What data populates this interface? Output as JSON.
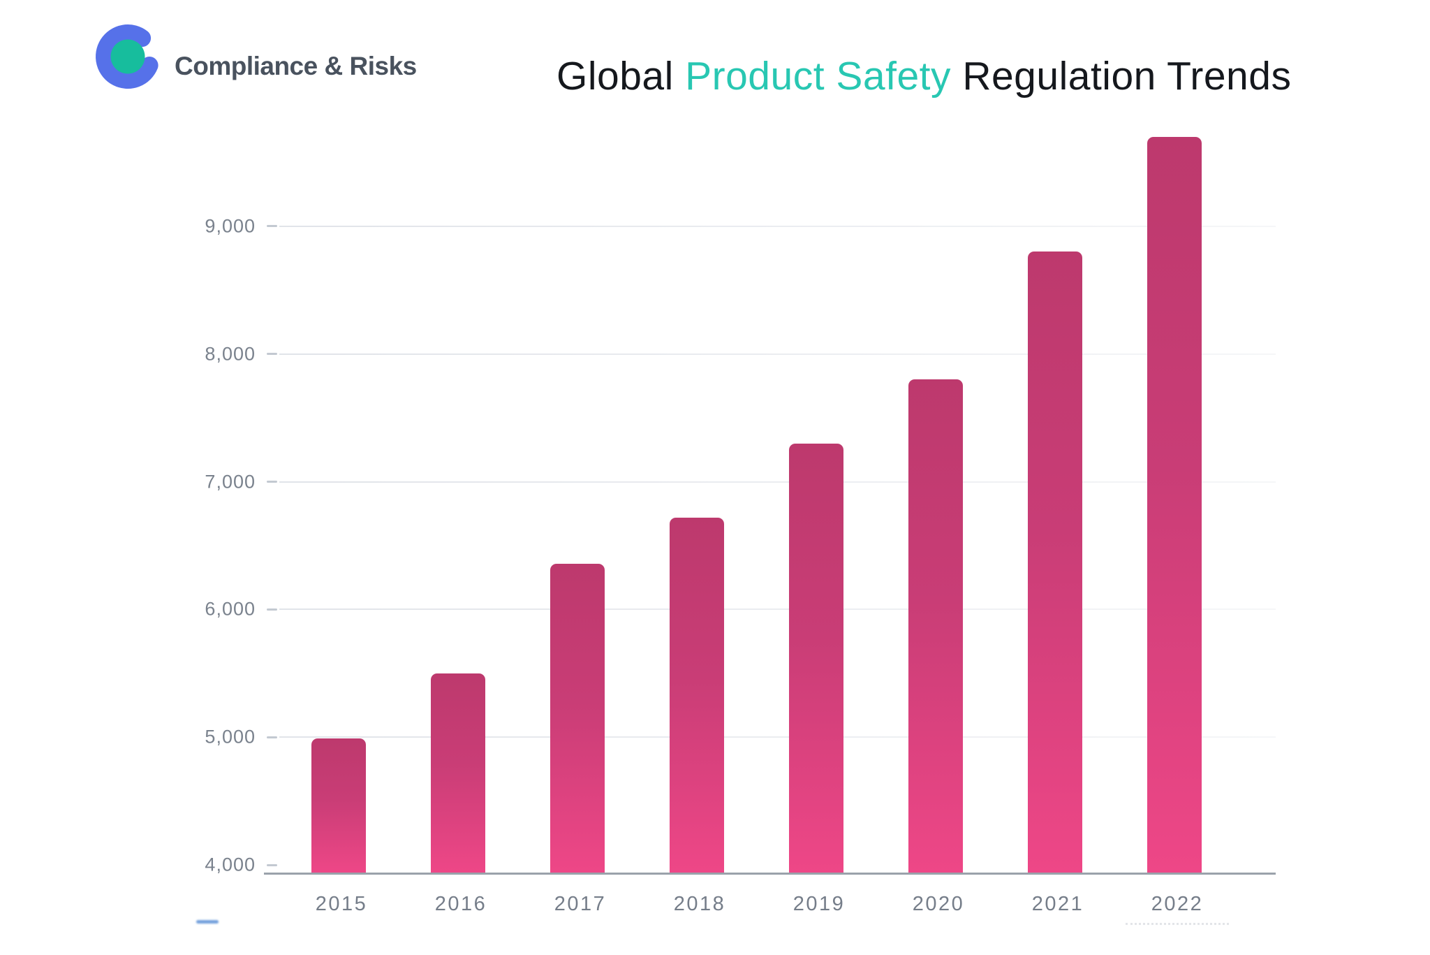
{
  "header": {
    "brand": "Compliance & Risks",
    "logo": {
      "ring_color": "#5671e9",
      "dot_color": "#17bd9d"
    },
    "title_parts": {
      "part1": "Global ",
      "part2": "Product Safety",
      "part3": " Regulation Trends"
    },
    "title_accent_color": "#28c7b2",
    "title_text_color": "#15181d"
  },
  "chart_data": {
    "type": "bar",
    "title": "Global Product Safety Regulation Trends",
    "categories": [
      "2015",
      "2016",
      "2017",
      "2018",
      "2019",
      "2020",
      "2021",
      "2022"
    ],
    "values": [
      4990,
      5500,
      6360,
      6720,
      7300,
      7800,
      8800,
      9700
    ],
    "xlabel": "",
    "ylabel": "",
    "ylim": [
      3935,
      10000
    ],
    "yticks": [
      4000,
      5000,
      6000,
      7000,
      8000,
      9000
    ],
    "ytick_labels": [
      "4,000",
      "5,000",
      "6,000",
      "7,000",
      "8,000",
      "9,000"
    ],
    "grid": "faint horizontal gridlines, left tick dashes",
    "legend_position": "none",
    "bar_color_top": "#bd396d",
    "bar_color_bottom": "#ee4787",
    "axis_line_color": "#9aa2ab",
    "tick_label_color": "#7a828d"
  }
}
